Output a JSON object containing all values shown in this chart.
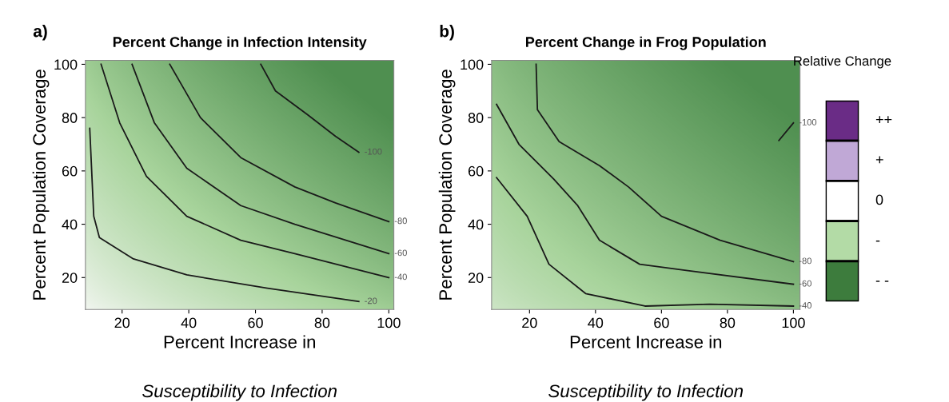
{
  "chart_data": [
    {
      "type": "line",
      "title": "Percent Change in Infection Intensity",
      "annotations": [
        "a)"
      ],
      "xlabel": "Percent Increase in\nSusceptibility to Infection",
      "ylabel": "Percent Population Coverage",
      "xlim": [
        9,
        101.5
      ],
      "ylim": [
        8,
        101.5
      ],
      "xticks": [
        20,
        40,
        60,
        80,
        100
      ],
      "yticks": [
        20,
        40,
        60,
        80,
        100
      ],
      "grid": false,
      "color": "#1a1a1a",
      "series": [
        {
          "name": "-20",
          "x": [
            10.3,
            11.5,
            13.2,
            23.4,
            39.4,
            63.6,
            91
          ],
          "values": [
            76,
            43,
            35,
            27,
            21,
            16,
            11
          ]
        },
        {
          "name": "-40",
          "x": [
            13.7,
            19.3,
            27.3,
            39.4,
            55.6,
            71.8,
            100
          ],
          "values": [
            100,
            78,
            58,
            43,
            34,
            29,
            20
          ]
        },
        {
          "name": "-60",
          "x": [
            23,
            29.7,
            39.4,
            55.6,
            71.8,
            100
          ],
          "values": [
            100,
            78,
            61,
            47,
            40,
            29
          ]
        },
        {
          "name": "-80",
          "x": [
            34.3,
            43.5,
            55.6,
            71.8,
            84,
            100
          ],
          "values": [
            100,
            80,
            65,
            54,
            48,
            41
          ]
        },
        {
          "name": "-100",
          "x": [
            61.6,
            66,
            75.7,
            84,
            91
          ],
          "values": [
            100,
            90,
            81,
            73,
            67
          ]
        }
      ]
    },
    {
      "type": "line",
      "title": "Percent Change in Frog Population",
      "annotations": [
        "b)"
      ],
      "xlabel": "Percent Increase in\nSusceptibility to Infection",
      "ylabel": "Percent Population Coverage",
      "xlim": [
        8.5,
        102
      ],
      "ylim": [
        8,
        101.5
      ],
      "xticks": [
        20,
        40,
        60,
        80,
        100
      ],
      "yticks": [
        20,
        40,
        60,
        80,
        100
      ],
      "grid": false,
      "color": "#1a1a1a",
      "series": [
        {
          "name": "-40",
          "x": [
            10,
            19.3,
            25.9,
            37,
            55,
            74.6,
            100
          ],
          "values": [
            57.5,
            43,
            25,
            14,
            9.3,
            10,
            9.3
          ]
        },
        {
          "name": "-60",
          "x": [
            10,
            16.8,
            27.3,
            34.6,
            41.2,
            53.4,
            68,
            100
          ],
          "values": [
            85,
            70,
            57,
            47,
            34,
            25,
            22.6,
            17.5
          ]
        },
        {
          "name": "-80",
          "x": [
            22,
            22.4,
            29,
            41.2,
            50,
            60,
            77.8,
            100
          ],
          "values": [
            100,
            83,
            71,
            62,
            54,
            43,
            34,
            26
          ]
        },
        {
          "name": "-100",
          "x": [
            95.6,
            100
          ],
          "values": [
            71.4,
            78
          ]
        }
      ]
    },
    {
      "type": "other",
      "title": "Relative Change",
      "categories": [
        "++",
        "+",
        "0",
        "-",
        "- -"
      ],
      "colors": [
        "#6a2c86",
        "#c0a8d6",
        "#ffffff",
        "#b3dba6",
        "#3d7c3d"
      ]
    }
  ]
}
